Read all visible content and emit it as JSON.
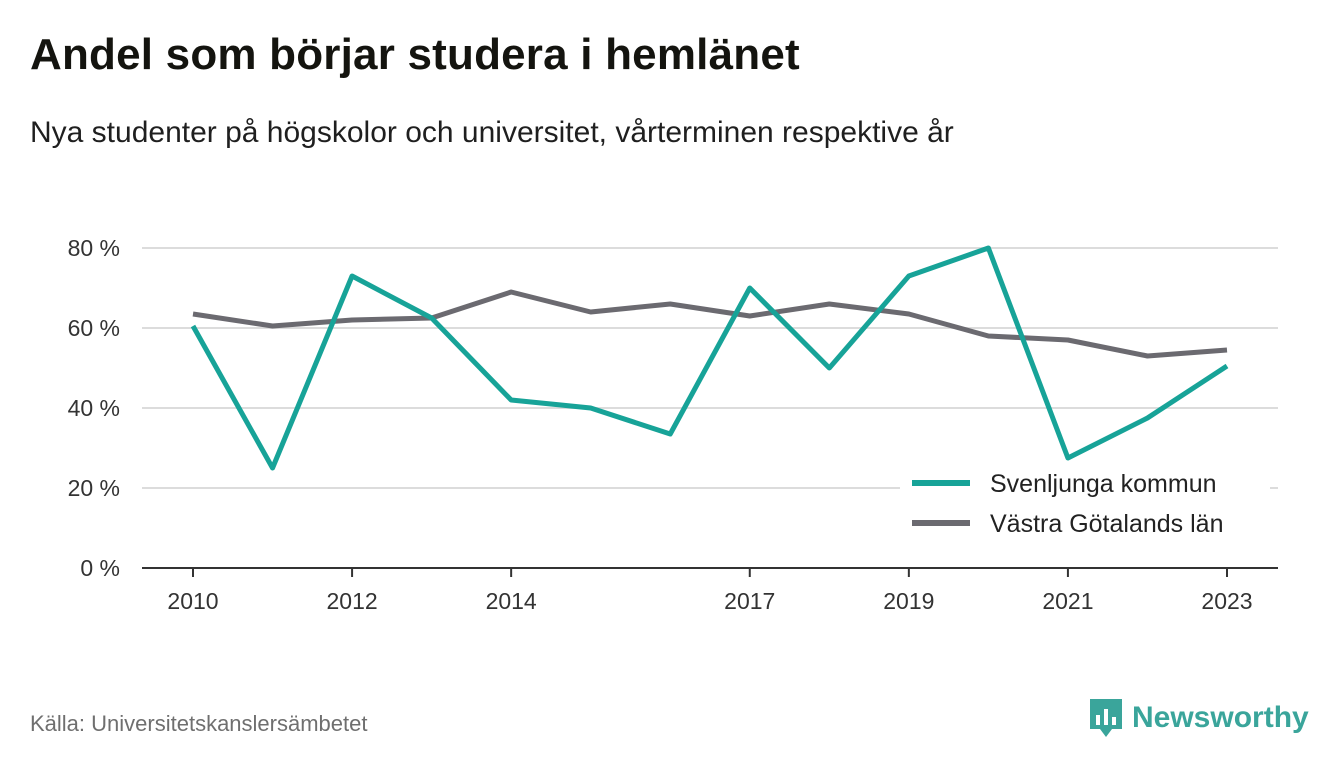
{
  "title": "Andel som börjar studera i hemlänet",
  "subtitle": "Nya studenter på högskolor och universitet, vårterminen respektive år",
  "source": "Källa: Universitetskanslersämbetet",
  "brand": {
    "name": "Newsworthy",
    "icon": "newsworthy-logo-icon",
    "color": "#3aa59b"
  },
  "chart_data": {
    "type": "line",
    "x": [
      2010,
      2011,
      2012,
      2013,
      2014,
      2015,
      2016,
      2017,
      2018,
      2019,
      2020,
      2021,
      2022,
      2023
    ],
    "x_ticks": [
      2010,
      2012,
      2014,
      2017,
      2019,
      2021,
      2023
    ],
    "x_tick_labels": [
      "2010",
      "2012",
      "2014",
      "2017",
      "2019",
      "2021",
      "2023"
    ],
    "y_ticks": [
      0,
      20,
      40,
      60,
      80
    ],
    "y_tick_labels": [
      "0 %",
      "20 %",
      "40 %",
      "60 %",
      "80 %"
    ],
    "ylim": [
      0,
      80
    ],
    "xlim": [
      2010,
      2023
    ],
    "grid": true,
    "legend_position": "bottom-right",
    "series": [
      {
        "name": "Svenljunga kommun",
        "color": "#17a398",
        "values": [
          60.5,
          25,
          73,
          62.5,
          42,
          40,
          33.5,
          70,
          50,
          73,
          80,
          27.5,
          37.5,
          50.5
        ]
      },
      {
        "name": "Västra Götalands län",
        "color": "#6b6a70",
        "values": [
          63.5,
          60.5,
          62,
          62.5,
          69,
          64,
          66,
          63,
          66,
          63.5,
          58,
          57,
          53,
          54.5
        ]
      }
    ]
  }
}
